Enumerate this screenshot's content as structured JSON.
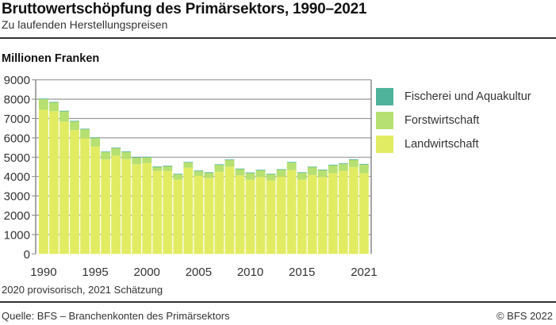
{
  "header": {
    "title": "Bruttowertschöpfung des Primärsektors, 1990–2021",
    "subtitle": "Zu laufenden Herstellungspreisen"
  },
  "unit_label": "Millionen Franken",
  "note": "2020 provisorisch, 2021 Schätzung",
  "footer": {
    "source": "Quelle: BFS – Branchenkonten des Primärsektors",
    "copyright": "© BFS 2022"
  },
  "colors": {
    "fischerei": "#4fb39c",
    "forst": "#b6e071",
    "land": "#e2ec63",
    "grid": "#9a9a9a",
    "axis": "#8a8a8a"
  },
  "legend": [
    {
      "label": "Fischerei und Aquakultur",
      "color": "#4fb39c"
    },
    {
      "label": "Forstwirtschaft",
      "color": "#b6e071"
    },
    {
      "label": "Landwirtschaft",
      "color": "#e2ec63"
    }
  ],
  "chart_data": {
    "type": "bar",
    "stacked": true,
    "title": "Bruttowertschöpfung des Primärsektors, 1990–2021",
    "subtitle": "Zu laufenden Herstellungspreisen",
    "xlabel": "",
    "ylabel": "Millionen Franken",
    "ylim": [
      0,
      9000
    ],
    "yticks": [
      0,
      1000,
      2000,
      3000,
      4000,
      5000,
      6000,
      7000,
      8000,
      9000
    ],
    "xtick_labels": [
      "1990",
      "1995",
      "2000",
      "2005",
      "2010",
      "2015",
      "2021"
    ],
    "grid": true,
    "legend_position": "right",
    "categories": [
      "1990",
      "1991",
      "1992",
      "1993",
      "1994",
      "1995",
      "1996",
      "1997",
      "1998",
      "1999",
      "2000",
      "2001",
      "2002",
      "2003",
      "2004",
      "2005",
      "2006",
      "2007",
      "2008",
      "2009",
      "2010",
      "2011",
      "2012",
      "2013",
      "2014",
      "2015",
      "2016",
      "2017",
      "2018",
      "2019",
      "2020",
      "2021"
    ],
    "series": [
      {
        "name": "Landwirtschaft",
        "values": [
          7450,
          7380,
          6840,
          6400,
          5980,
          5550,
          4880,
          5080,
          4900,
          4630,
          4700,
          4290,
          4290,
          3840,
          4450,
          4030,
          3920,
          4250,
          4510,
          4060,
          3830,
          3980,
          3800,
          4000,
          4330,
          3840,
          4080,
          3980,
          4170,
          4290,
          4490,
          4170
        ]
      },
      {
        "name": "Forstwirtschaft",
        "values": [
          560,
          460,
          540,
          460,
          470,
          450,
          390,
          390,
          380,
          350,
          300,
          210,
          250,
          280,
          280,
          260,
          280,
          360,
          350,
          330,
          360,
          350,
          320,
          360,
          400,
          360,
          410,
          360,
          420,
          370,
          380,
          460
        ]
      },
      {
        "name": "Fischerei und Aquakultur",
        "values": [
          20,
          20,
          20,
          20,
          20,
          20,
          20,
          20,
          20,
          20,
          20,
          20,
          20,
          20,
          20,
          20,
          20,
          20,
          20,
          20,
          20,
          20,
          20,
          20,
          20,
          20,
          20,
          20,
          20,
          20,
          20,
          20
        ]
      }
    ]
  }
}
